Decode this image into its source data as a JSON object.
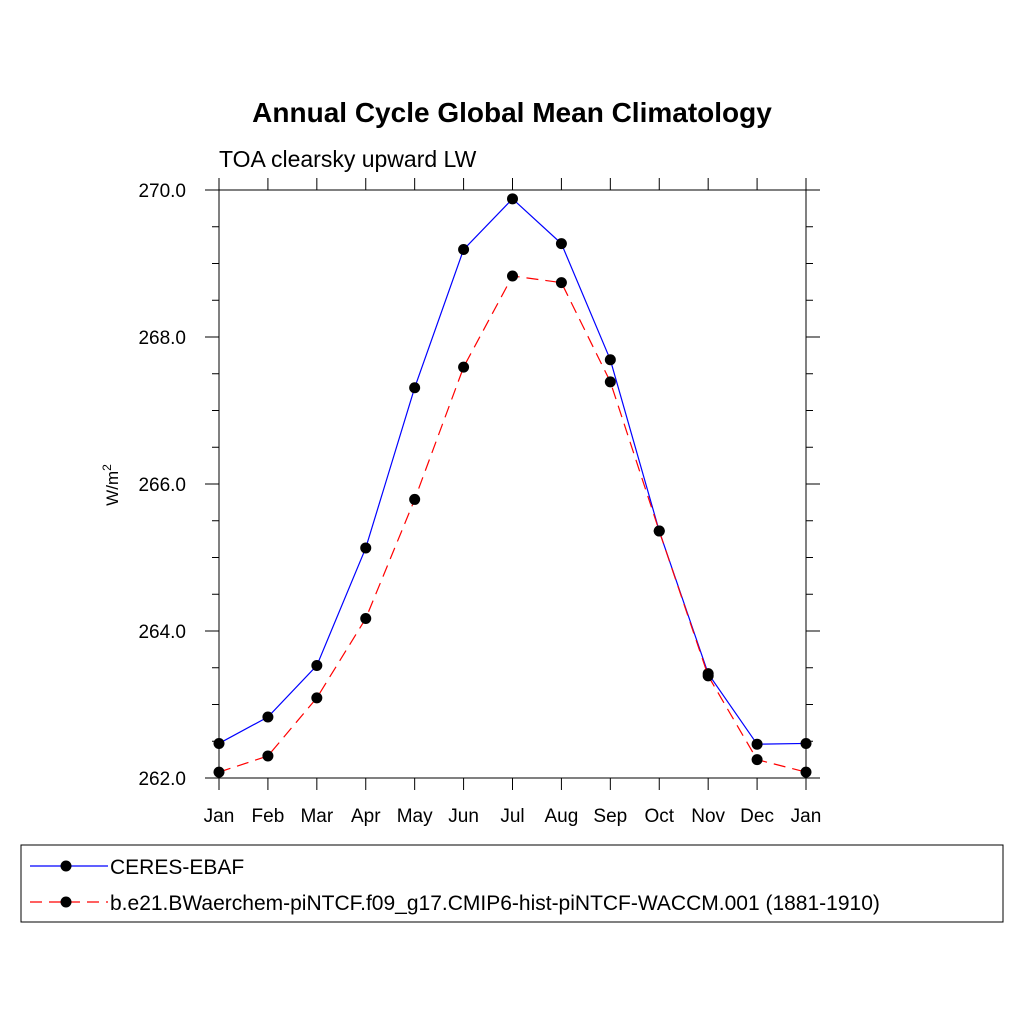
{
  "chart_data": {
    "type": "line",
    "title": "Annual Cycle Global Mean Climatology",
    "subtitle": "TOA clearsky upward LW",
    "xlabel": "",
    "ylabel": "W/m",
    "ylabel_superscript": "2",
    "categories": [
      "Jan",
      "Feb",
      "Mar",
      "Apr",
      "May",
      "Jun",
      "Jul",
      "Aug",
      "Sep",
      "Oct",
      "Nov",
      "Dec",
      "Jan"
    ],
    "ylim": [
      262.0,
      270.0
    ],
    "yticks": [
      262.0,
      264.0,
      266.0,
      268.0,
      270.0
    ],
    "ytick_labels": [
      "262.0",
      "264.0",
      "266.0",
      "268.0",
      "270.0"
    ],
    "grid": false,
    "legend_position": "bottom",
    "series": [
      {
        "name": "CERES-EBAF",
        "color": "#0000ff",
        "line_style": "solid",
        "marker": "filled-circle",
        "values": [
          262.47,
          262.83,
          263.53,
          265.13,
          267.31,
          269.19,
          269.88,
          269.27,
          267.69,
          265.36,
          263.42,
          262.46,
          262.47
        ]
      },
      {
        "name": "b.e21.BWaerchem-piNTCF.f09_g17.CMIP6-hist-piNTCF-WACCM.001 (1881-1910)",
        "color": "#ff0000",
        "line_style": "dashed",
        "marker": "filled-circle",
        "values": [
          262.08,
          262.3,
          263.09,
          264.17,
          265.79,
          267.59,
          268.83,
          268.74,
          267.39,
          265.36,
          263.39,
          262.25,
          262.08
        ]
      }
    ]
  }
}
